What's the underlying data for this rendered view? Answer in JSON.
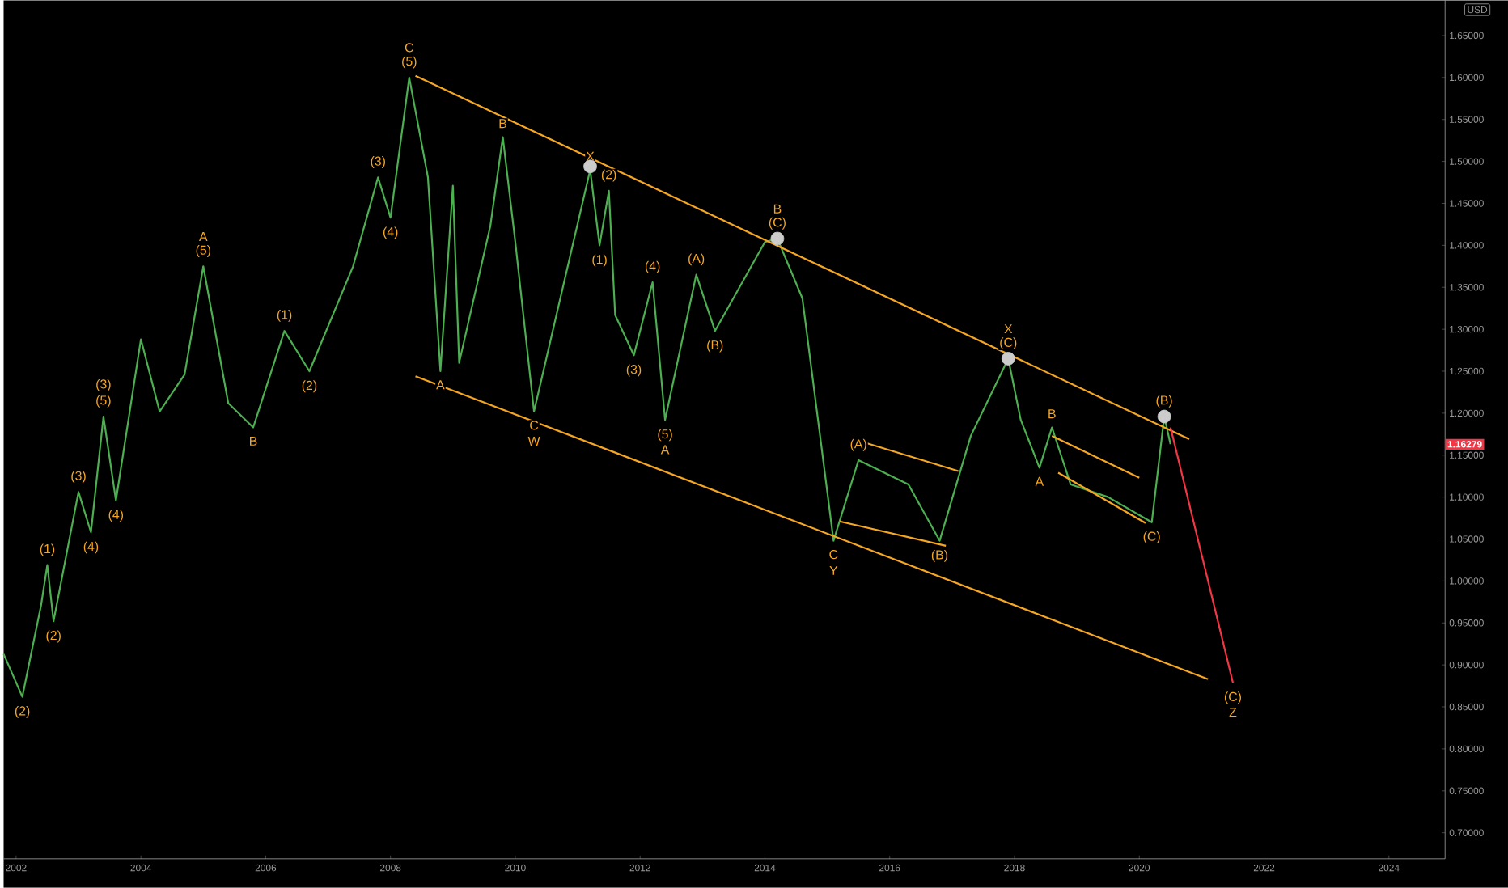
{
  "chart_data": {
    "type": "line",
    "ylabel": "USD",
    "xlim": [
      2001.8,
      2024.9
    ],
    "xticks": [
      2002,
      2004,
      2006,
      2008,
      2010,
      2012,
      2014,
      2016,
      2018,
      2020,
      2022,
      2024
    ],
    "ylim": [
      0.669,
      1.692
    ],
    "yticks": [
      {
        "value": 0.7,
        "label": "0.70000"
      },
      {
        "value": 0.75,
        "label": "0.75000"
      },
      {
        "value": 0.8,
        "label": "0.80000"
      },
      {
        "value": 0.85,
        "label": "0.85000"
      },
      {
        "value": 0.9,
        "label": "0.90000"
      },
      {
        "value": 0.95,
        "label": "0.95000"
      },
      {
        "value": 1.0,
        "label": "1.00000"
      },
      {
        "value": 1.05,
        "label": "1.05000"
      },
      {
        "value": 1.1,
        "label": "1.10000"
      },
      {
        "value": 1.15,
        "label": "1.15000"
      },
      {
        "value": 1.2,
        "label": "1.20000"
      },
      {
        "value": 1.25,
        "label": "1.25000"
      },
      {
        "value": 1.3,
        "label": "1.30000"
      },
      {
        "value": 1.35,
        "label": "1.35000"
      },
      {
        "value": 1.4,
        "label": "1.40000"
      },
      {
        "value": 1.45,
        "label": "1.45000"
      },
      {
        "value": 1.5,
        "label": "1.50000"
      },
      {
        "value": 1.55,
        "label": "1.55000"
      },
      {
        "value": 1.6,
        "label": "1.60000"
      },
      {
        "value": 1.65,
        "label": "1.65000"
      }
    ],
    "series": [
      {
        "color": "#4caf50",
        "x": [
          2001.8,
          2002.1,
          2002.4,
          2002.5,
          2002.6,
          2003.0,
          2003.2,
          2003.4,
          2003.6,
          2004.0,
          2004.3,
          2004.7,
          2005.0,
          2005.4,
          2005.8,
          2006.3,
          2006.7,
          2007.4,
          2007.8,
          2008.0,
          2008.3,
          2008.6,
          2008.8,
          2009.0,
          2009.1,
          2009.6,
          2009.8,
          2010.0,
          2010.3,
          2010.9,
          2011.2,
          2011.35,
          2011.5,
          2011.6,
          2011.9,
          2012.2,
          2012.4,
          2012.9,
          2013.2,
          2014.0,
          2014.2,
          2014.6,
          2015.0,
          2015.1,
          2015.5,
          2016.3,
          2016.8,
          2017.3,
          2017.9,
          2018.1,
          2018.4,
          2018.6,
          2018.9,
          2019.5,
          2020.2,
          2020.4,
          2020.5
        ],
        "values": [
          0.913,
          0.862,
          0.971,
          1.019,
          0.952,
          1.106,
          1.058,
          1.196,
          1.096,
          1.288,
          1.202,
          1.246,
          1.375,
          1.212,
          1.183,
          1.298,
          1.25,
          1.375,
          1.481,
          1.433,
          1.6,
          1.481,
          1.25,
          1.471,
          1.26,
          1.423,
          1.529,
          1.404,
          1.202,
          1.394,
          1.49,
          1.4,
          1.465,
          1.317,
          1.269,
          1.356,
          1.192,
          1.365,
          1.298,
          1.404,
          1.408,
          1.337,
          1.106,
          1.048,
          1.144,
          1.115,
          1.048,
          1.173,
          1.265,
          1.192,
          1.135,
          1.183,
          1.115,
          1.1,
          1.07,
          1.196,
          1.163
        ]
      },
      {
        "type": "line",
        "color": "#f5a623",
        "x": [
          2008.4,
          2020.8
        ],
        "values": [
          1.602,
          1.169
        ]
      },
      {
        "type": "line",
        "color": "#f5a623",
        "x": [
          2008.4,
          2021.1
        ],
        "values": [
          1.244,
          0.883
        ]
      },
      {
        "type": "line",
        "color": "#f5a623",
        "x": [
          2015.6,
          2017.1
        ],
        "values": [
          1.165,
          1.131
        ]
      },
      {
        "type": "line",
        "color": "#f5a623",
        "x": [
          2015.2,
          2016.9
        ],
        "values": [
          1.071,
          1.042
        ]
      },
      {
        "type": "line",
        "color": "#f5a623",
        "x": [
          2018.6,
          2020.0
        ],
        "values": [
          1.173,
          1.123
        ]
      },
      {
        "type": "line",
        "color": "#f5a623",
        "x": [
          2018.7,
          2020.1
        ],
        "values": [
          1.129,
          1.069
        ]
      },
      {
        "type": "line",
        "color": "#f23645",
        "x": [
          2020.5,
          2021.5
        ],
        "values": [
          1.183,
          0.879
        ]
      },
      {
        "type": "scatter",
        "color": "#cccccc",
        "x": [
          2011.2,
          2014.2,
          2017.9,
          2020.4
        ],
        "values": [
          1.494,
          1.408,
          1.265,
          1.196
        ]
      }
    ],
    "annotations": [
      {
        "text": "(2)",
        "x": 2002.1,
        "y": 0.862
      },
      {
        "text": "(1)",
        "x": 2002.5,
        "y": 1.019
      },
      {
        "text": "(2)",
        "x": 2002.6,
        "y": 0.952
      },
      {
        "text": "(3)",
        "x": 2003.0,
        "y": 1.106
      },
      {
        "text": "(4)",
        "x": 2003.2,
        "y": 1.058
      },
      {
        "text": "(5)",
        "x": 2003.4,
        "y": 1.196
      },
      {
        "text": "(3)",
        "x": 2003.4,
        "y": 1.196
      },
      {
        "text": "(4)",
        "x": 2003.6,
        "y": 1.096
      },
      {
        "text": "(5)",
        "x": 2005.0,
        "y": 1.375
      },
      {
        "text": "A",
        "x": 2005.0,
        "y": 1.375
      },
      {
        "text": "B",
        "x": 2005.8,
        "y": 1.183
      },
      {
        "text": "(1)",
        "x": 2006.3,
        "y": 1.298
      },
      {
        "text": "(2)",
        "x": 2006.7,
        "y": 1.25
      },
      {
        "text": "(3)",
        "x": 2007.8,
        "y": 1.481
      },
      {
        "text": "(4)",
        "x": 2008.0,
        "y": 1.433
      },
      {
        "text": "(5)",
        "x": 2008.3,
        "y": 1.6
      },
      {
        "text": "C",
        "x": 2008.3,
        "y": 1.6
      },
      {
        "text": "A",
        "x": 2008.8,
        "y": 1.25
      },
      {
        "text": "B",
        "x": 2009.8,
        "y": 1.529
      },
      {
        "text": "C",
        "x": 2010.3,
        "y": 1.202
      },
      {
        "text": "W",
        "x": 2010.3,
        "y": 1.202
      },
      {
        "text": "X",
        "x": 2011.2,
        "y": 1.49
      },
      {
        "text": "(1)",
        "x": 2011.35,
        "y": 1.4
      },
      {
        "text": "(2)",
        "x": 2011.5,
        "y": 1.465
      },
      {
        "text": "(3)",
        "x": 2011.9,
        "y": 1.269
      },
      {
        "text": "(4)",
        "x": 2012.2,
        "y": 1.356
      },
      {
        "text": "(5)",
        "x": 2012.4,
        "y": 1.192
      },
      {
        "text": "A",
        "x": 2012.4,
        "y": 1.192
      },
      {
        "text": "(A)",
        "x": 2012.9,
        "y": 1.365
      },
      {
        "text": "(B)",
        "x": 2013.2,
        "y": 1.298
      },
      {
        "text": "(C)",
        "x": 2014.2,
        "y": 1.408
      },
      {
        "text": "B",
        "x": 2014.2,
        "y": 1.408
      },
      {
        "text": "(A)",
        "x": 2015.5,
        "y": 1.144
      },
      {
        "text": "C",
        "x": 2015.1,
        "y": 1.048
      },
      {
        "text": "Y",
        "x": 2015.1,
        "y": 1.048
      },
      {
        "text": "(B)",
        "x": 2016.8,
        "y": 1.048
      },
      {
        "text": "(C)",
        "x": 2017.9,
        "y": 1.265
      },
      {
        "text": "X",
        "x": 2017.9,
        "y": 1.265
      },
      {
        "text": "A",
        "x": 2018.4,
        "y": 1.135
      },
      {
        "text": "B",
        "x": 2018.6,
        "y": 1.183
      },
      {
        "text": "(C)",
        "x": 2020.2,
        "y": 1.07
      },
      {
        "text": "(B)",
        "x": 2020.4,
        "y": 1.196
      },
      {
        "text": "(C)",
        "x": 2021.5,
        "y": 0.879
      },
      {
        "text": "Z",
        "x": 2021.5,
        "y": 0.879
      },
      "1.16279"
    ]
  }
}
